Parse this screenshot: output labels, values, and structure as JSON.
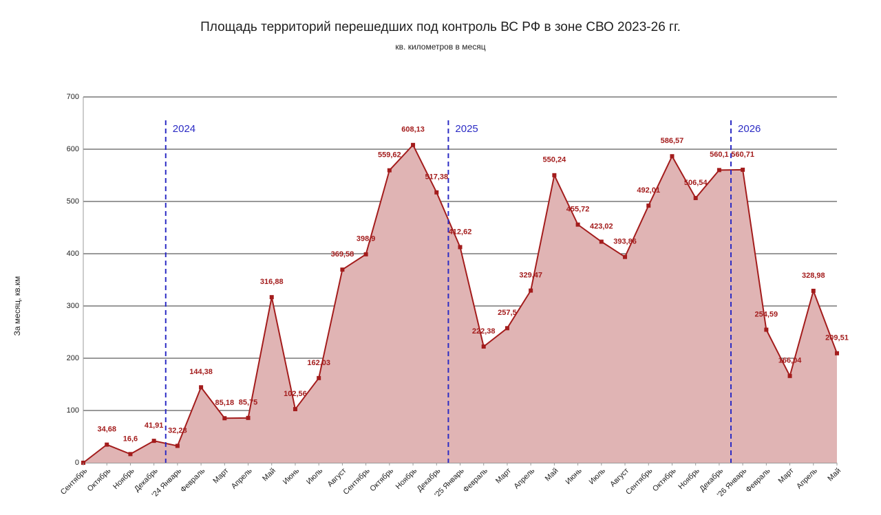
{
  "chart_data": {
    "type": "area",
    "title": "Площадь территорий перешедших под контроль ВС РФ в зоне СВО 2023-26 гг.",
    "subtitle": "кв. километров в месяц",
    "y_label": "За месяц, кв.км",
    "categories": [
      "Сентябрь",
      "Октябрь",
      "Ноябрь",
      "Декабрь",
      "'24 Январь",
      "Февраль",
      "Март",
      "Апрель",
      "Май",
      "Июнь",
      "Июль",
      "Август",
      "Сентябрь",
      "Октябрь",
      "Ноябрь",
      "Декабрь",
      "'25 Январь",
      "Февраль",
      "Март",
      "Апрель",
      "Май",
      "Июнь",
      "Июль",
      "Август",
      "Сентябрь",
      "Октябрь",
      "Ноябрь",
      "Декабрь",
      "'26 Январь",
      "Февраль",
      "Март",
      "Апрель",
      "Май"
    ],
    "values": [
      0,
      34.68,
      16.6,
      41.91,
      32.28,
      144.38,
      85.18,
      85.75,
      316.88,
      102.56,
      162.03,
      369.58,
      398.9,
      559.62,
      608.13,
      517.38,
      412.62,
      222.38,
      257.5,
      329.47,
      550.24,
      455.72,
      423.02,
      393.86,
      492.01,
      586.57,
      506.54,
      560.1,
      560.71,
      254.59,
      166.04,
      328.98,
      209.51
    ],
    "value_labels": [
      null,
      "34,68",
      "16,6",
      "41,91",
      "32,28",
      "144,38",
      "85,18",
      "85,75",
      "316,88",
      "102,56",
      "162,03",
      "369,58",
      "398,9",
      "559,62",
      "608,13",
      "517,38",
      "412,62",
      "222,38",
      "257,5",
      "329,47",
      "550,24",
      "455,72",
      "423,02",
      "393,86",
      "492,01",
      "586,57",
      "506,54",
      "560,1",
      "560,71",
      "254,59",
      "166,04",
      "328,98",
      "209,51"
    ],
    "color": "#a31c1c",
    "fill_color": "#e0b4b4",
    "ylim": [
      0,
      700
    ],
    "yticks": [
      0,
      100,
      200,
      300,
      400,
      500,
      600,
      700
    ],
    "grid": true,
    "year_markers": [
      {
        "label": "2024",
        "category": 4
      },
      {
        "label": "2025",
        "category": 16
      },
      {
        "label": "2026",
        "category": 28
      }
    ],
    "marker_color": "#2b2bc4"
  }
}
